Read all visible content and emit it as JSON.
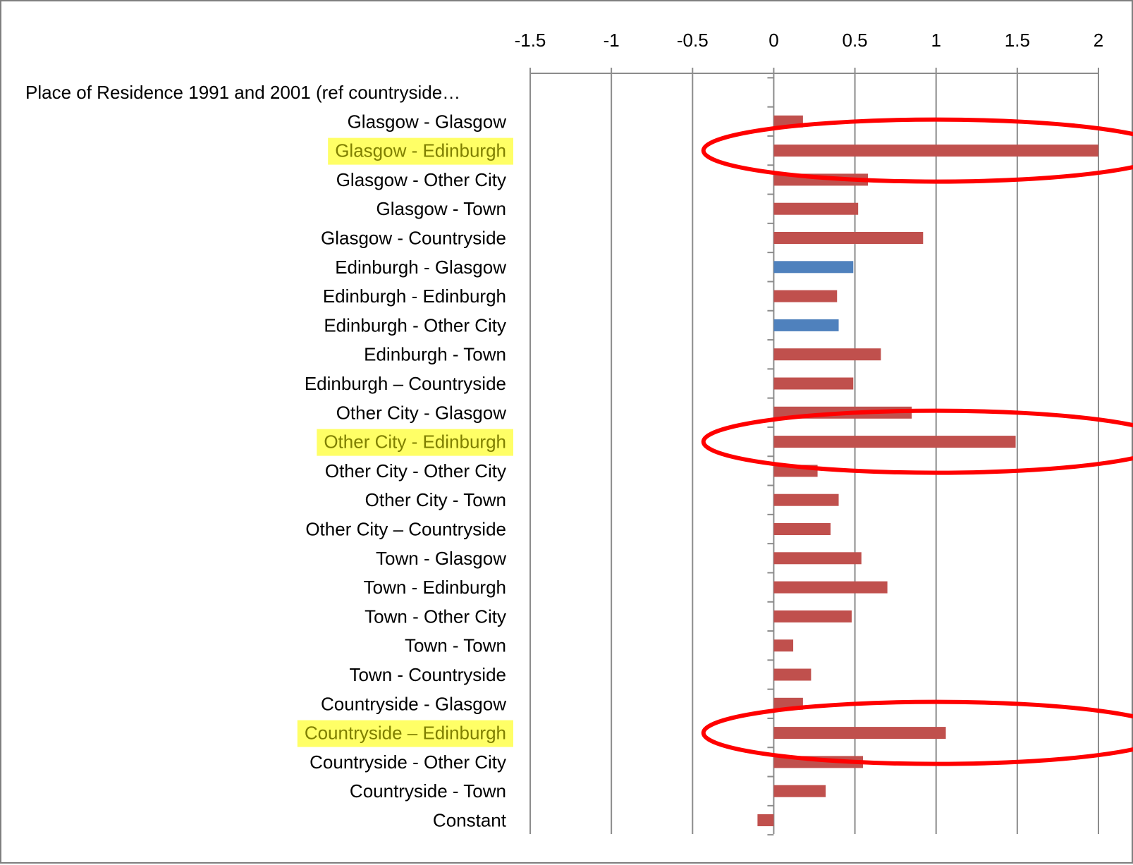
{
  "chart_data": {
    "type": "bar",
    "orientation": "horizontal",
    "title": "",
    "xlabel": "",
    "ylabel": "",
    "xlim": [
      -1.5,
      2
    ],
    "x_ticks": [
      "-1.5",
      "-1",
      "-0.5",
      "0",
      "0.5",
      "1",
      "1.5",
      "2"
    ],
    "x_tick_values": [
      -1.5,
      -1,
      -0.5,
      0,
      0.5,
      1,
      1.5,
      2
    ],
    "grid": true,
    "legend": "none",
    "axis_position": "top",
    "colors": {
      "red": "#c0504d",
      "blue": "#4f81bd",
      "highlight": "#ffff66",
      "circle": "#ff0000",
      "grid": "#8c8c8c",
      "frame": "#7f7f7f",
      "text": "#000000"
    },
    "categories": [
      "Place of Residence 1991 and 2001 (ref countryside…",
      "Glasgow  - Glasgow",
      "Glasgow  - Edinburgh",
      "Glasgow  - Other City",
      "Glasgow  - Town",
      "Glasgow  - Countryside",
      "Edinburgh - Glasgow",
      "Edinburgh - Edinburgh",
      "Edinburgh - Other City",
      "Edinburgh - Town",
      "Edinburgh – Countryside",
      "Other City - Glasgow",
      "Other City - Edinburgh",
      "Other City - Other City",
      "Other City - Town",
      "Other City – Countryside",
      "Town  - Glasgow",
      "Town  - Edinburgh",
      "Town  - Other City",
      "Town  - Town",
      "Town  - Countryside",
      "Countryside - Glasgow",
      "Countryside – Edinburgh",
      "Countryside - Other City",
      "Countryside - Town",
      "Constant"
    ],
    "values": [
      null,
      0.18,
      2.0,
      0.58,
      0.52,
      0.92,
      0.49,
      0.39,
      0.4,
      0.66,
      0.49,
      0.85,
      1.49,
      0.27,
      0.4,
      0.35,
      0.54,
      0.7,
      0.48,
      0.12,
      0.23,
      0.18,
      1.06,
      0.55,
      0.32,
      -0.1
    ],
    "bar_colors": [
      "red",
      "red",
      "red",
      "red",
      "red",
      "red",
      "blue",
      "red",
      "blue",
      "red",
      "red",
      "red",
      "red",
      "red",
      "red",
      "red",
      "red",
      "red",
      "red",
      "red",
      "red",
      "red",
      "red",
      "red",
      "red",
      "red"
    ],
    "highlighted_categories": [
      2,
      12,
      22
    ],
    "circled_categories": [
      2,
      12,
      22
    ]
  }
}
